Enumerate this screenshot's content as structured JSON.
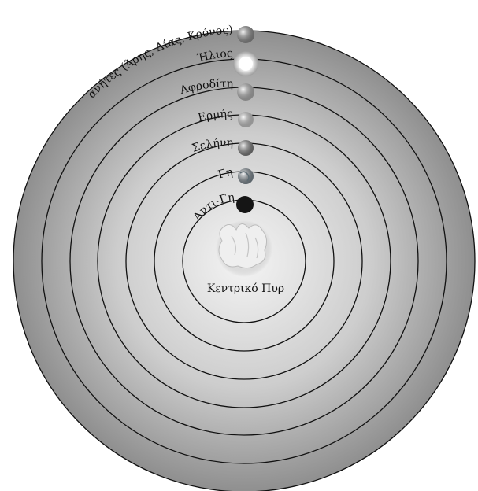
{
  "diagram": {
    "outer_label": "Πλανήτες (Άρης, Δίας, Κρόνος)",
    "center_label": "Κεντρικό Πυρ",
    "orbits": [
      {
        "key": "anti-earth",
        "label": "Αντι-Γη",
        "body_color": "#1a1a1a",
        "icon": "anti-earth-icon"
      },
      {
        "key": "earth",
        "label": "Γη",
        "body_color": "#8a9aa6",
        "icon": "earth-icon"
      },
      {
        "key": "moon",
        "label": "Σελήνη",
        "body_color": "#8f8f8f",
        "icon": "moon-icon"
      },
      {
        "key": "mercury",
        "label": "Ερμής",
        "body_color": "#e6e6e6",
        "icon": "mercury-icon"
      },
      {
        "key": "venus",
        "label": "Αφροδίτη",
        "body_color": "#c8c8c8",
        "icon": "venus-icon"
      },
      {
        "key": "sun",
        "label": "Ήλιος",
        "body_color": "#f4f4f4",
        "icon": "sun-icon"
      }
    ],
    "outer_body": {
      "body_color": "#a0a0a0",
      "icon": "planets-icon"
    },
    "colors": {
      "background": "#ffffff",
      "sphere_outer": "#9a9a9a",
      "sphere_inner": "#f2f2f2",
      "ring_stroke": "#111111"
    }
  }
}
